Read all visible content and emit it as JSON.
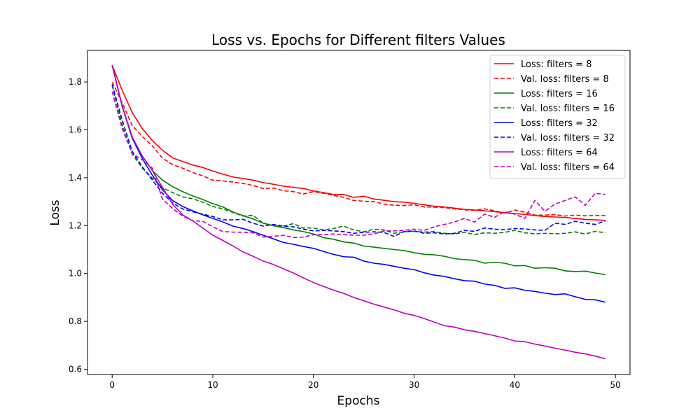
{
  "chart_data": {
    "type": "line",
    "title": "Loss vs. Epochs for Different filters Values",
    "xlabel": "Epochs",
    "ylabel": "Loss",
    "xlim": [
      -2.45,
      51.45
    ],
    "ylim": [
      0.578,
      1.932
    ],
    "xticks": [
      0,
      10,
      20,
      30,
      40,
      50
    ],
    "yticks": [
      0.6,
      0.8,
      1.0,
      1.2,
      1.4,
      1.6,
      1.8
    ],
    "grid": false,
    "legend_position": "upper-right",
    "x": [
      0,
      1,
      2,
      3,
      4,
      5,
      6,
      7,
      8,
      9,
      10,
      11,
      12,
      13,
      14,
      15,
      16,
      17,
      18,
      19,
      20,
      21,
      22,
      23,
      24,
      25,
      26,
      27,
      28,
      29,
      30,
      31,
      32,
      33,
      34,
      35,
      36,
      37,
      38,
      39,
      40,
      41,
      42,
      43,
      44,
      45,
      46,
      47,
      48,
      49
    ],
    "series": [
      {
        "name": "Loss: filters = 8",
        "color": "#ff0000",
        "dash": "solid",
        "values": [
          1.87,
          1.765,
          1.672,
          1.605,
          1.555,
          1.515,
          1.483,
          1.468,
          1.453,
          1.443,
          1.428,
          1.415,
          1.403,
          1.397,
          1.39,
          1.38,
          1.373,
          1.365,
          1.36,
          1.355,
          1.345,
          1.338,
          1.33,
          1.33,
          1.318,
          1.323,
          1.311,
          1.306,
          1.3,
          1.298,
          1.293,
          1.287,
          1.281,
          1.278,
          1.273,
          1.268,
          1.265,
          1.262,
          1.258,
          1.254,
          1.25,
          1.247,
          1.242,
          1.238,
          1.236,
          1.234,
          1.23,
          1.226,
          1.224,
          1.222
        ]
      },
      {
        "name": "Val. loss: filters = 8",
        "color": "#ff0000",
        "dash": "dashed",
        "values": [
          1.8,
          1.712,
          1.618,
          1.572,
          1.533,
          1.482,
          1.455,
          1.44,
          1.422,
          1.408,
          1.39,
          1.387,
          1.382,
          1.376,
          1.368,
          1.355,
          1.357,
          1.346,
          1.342,
          1.332,
          1.342,
          1.335,
          1.326,
          1.318,
          1.305,
          1.302,
          1.3,
          1.29,
          1.285,
          1.284,
          1.287,
          1.278,
          1.277,
          1.275,
          1.27,
          1.266,
          1.264,
          1.27,
          1.262,
          1.252,
          1.265,
          1.256,
          1.244,
          1.244,
          1.246,
          1.24,
          1.244,
          1.241,
          1.242,
          1.242
        ]
      },
      {
        "name": "Loss: filters = 16",
        "color": "#008000",
        "dash": "solid",
        "values": [
          1.87,
          1.697,
          1.565,
          1.49,
          1.43,
          1.39,
          1.363,
          1.342,
          1.324,
          1.309,
          1.292,
          1.278,
          1.257,
          1.242,
          1.228,
          1.21,
          1.2,
          1.192,
          1.182,
          1.175,
          1.165,
          1.15,
          1.143,
          1.132,
          1.127,
          1.115,
          1.11,
          1.105,
          1.1,
          1.096,
          1.087,
          1.08,
          1.078,
          1.072,
          1.062,
          1.058,
          1.055,
          1.043,
          1.047,
          1.043,
          1.032,
          1.033,
          1.022,
          1.024,
          1.022,
          1.011,
          1.008,
          1.01,
          1.002,
          0.995
        ]
      },
      {
        "name": "Val. loss: filters = 16",
        "color": "#008000",
        "dash": "dashed",
        "values": [
          1.785,
          1.62,
          1.498,
          1.44,
          1.398,
          1.358,
          1.338,
          1.32,
          1.312,
          1.298,
          1.28,
          1.27,
          1.255,
          1.24,
          1.243,
          1.21,
          1.2,
          1.198,
          1.208,
          1.19,
          1.19,
          1.182,
          1.188,
          1.198,
          1.182,
          1.174,
          1.185,
          1.182,
          1.168,
          1.174,
          1.176,
          1.173,
          1.175,
          1.168,
          1.165,
          1.172,
          1.163,
          1.17,
          1.168,
          1.172,
          1.18,
          1.17,
          1.166,
          1.168,
          1.166,
          1.168,
          1.174,
          1.165,
          1.176,
          1.17
        ]
      },
      {
        "name": "Loss: filters = 32",
        "color": "#0000ff",
        "dash": "solid",
        "values": [
          1.87,
          1.7,
          1.565,
          1.48,
          1.41,
          1.35,
          1.305,
          1.28,
          1.262,
          1.245,
          1.23,
          1.215,
          1.198,
          1.188,
          1.175,
          1.16,
          1.145,
          1.13,
          1.122,
          1.113,
          1.105,
          1.092,
          1.08,
          1.07,
          1.068,
          1.052,
          1.043,
          1.038,
          1.03,
          1.022,
          1.016,
          1.003,
          0.993,
          0.988,
          0.978,
          0.97,
          0.968,
          0.956,
          0.95,
          0.938,
          0.94,
          0.93,
          0.925,
          0.918,
          0.912,
          0.915,
          0.903,
          0.892,
          0.89,
          0.88
        ]
      },
      {
        "name": "Val. loss: filters = 32",
        "color": "#0000ff",
        "dash": "dashed",
        "values": [
          1.79,
          1.64,
          1.51,
          1.445,
          1.39,
          1.335,
          1.295,
          1.27,
          1.258,
          1.248,
          1.238,
          1.224,
          1.224,
          1.226,
          1.21,
          1.198,
          1.205,
          1.198,
          1.195,
          1.185,
          1.178,
          1.18,
          1.178,
          1.175,
          1.168,
          1.172,
          1.174,
          1.172,
          1.155,
          1.175,
          1.178,
          1.168,
          1.17,
          1.165,
          1.168,
          1.18,
          1.176,
          1.19,
          1.185,
          1.183,
          1.188,
          1.186,
          1.182,
          1.18,
          1.21,
          1.205,
          1.218,
          1.21,
          1.205,
          1.22
        ]
      },
      {
        "name": "Loss: filters = 64",
        "color": "#bf00bf",
        "dash": "solid",
        "values": [
          1.87,
          1.7,
          1.57,
          1.49,
          1.43,
          1.36,
          1.29,
          1.245,
          1.22,
          1.19,
          1.16,
          1.138,
          1.115,
          1.09,
          1.072,
          1.052,
          1.038,
          1.02,
          1.002,
          0.982,
          0.962,
          0.946,
          0.93,
          0.917,
          0.9,
          0.886,
          0.872,
          0.86,
          0.848,
          0.834,
          0.825,
          0.812,
          0.797,
          0.782,
          0.776,
          0.765,
          0.758,
          0.749,
          0.74,
          0.73,
          0.718,
          0.715,
          0.705,
          0.697,
          0.688,
          0.68,
          0.671,
          0.664,
          0.655,
          0.643
        ]
      },
      {
        "name": "Val. loss: filters = 64",
        "color": "#bf00bf",
        "dash": "dashed",
        "values": [
          1.76,
          1.605,
          1.5,
          1.475,
          1.44,
          1.31,
          1.272,
          1.24,
          1.22,
          1.218,
          1.195,
          1.175,
          1.173,
          1.172,
          1.17,
          1.152,
          1.155,
          1.16,
          1.15,
          1.152,
          1.162,
          1.162,
          1.165,
          1.162,
          1.16,
          1.16,
          1.165,
          1.178,
          1.178,
          1.18,
          1.185,
          1.18,
          1.195,
          1.205,
          1.215,
          1.23,
          1.215,
          1.248,
          1.235,
          1.258,
          1.248,
          1.23,
          1.305,
          1.26,
          1.29,
          1.305,
          1.32,
          1.285,
          1.335,
          1.33
        ]
      }
    ]
  }
}
